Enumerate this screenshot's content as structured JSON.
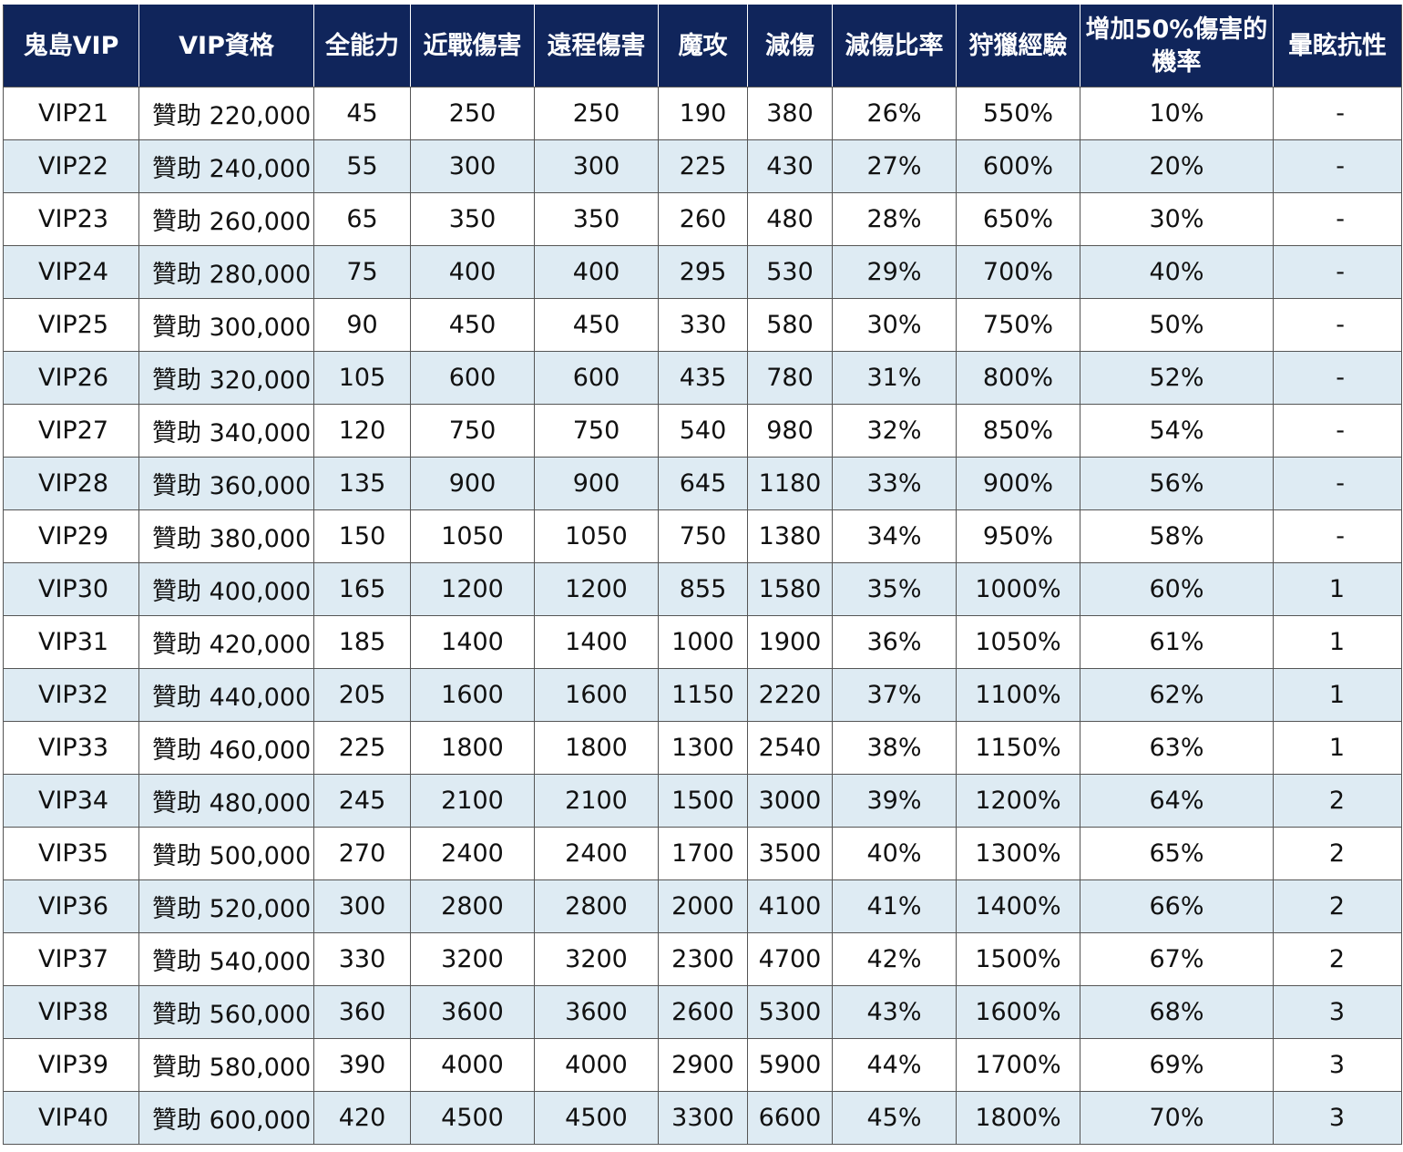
{
  "table": {
    "headers": [
      "鬼島VIP",
      "VIP資格",
      "全能力",
      "近戰傷害",
      "遠程傷害",
      "魔攻",
      "減傷",
      "減傷比率",
      "狩獵經驗",
      "增加50%傷害的機率",
      "暈眩抗性"
    ],
    "rows": [
      [
        "VIP21",
        "贊助 220,000",
        "45",
        "250",
        "250",
        "190",
        "380",
        "26%",
        "550%",
        "10%",
        "-"
      ],
      [
        "VIP22",
        "贊助 240,000",
        "55",
        "300",
        "300",
        "225",
        "430",
        "27%",
        "600%",
        "20%",
        "-"
      ],
      [
        "VIP23",
        "贊助 260,000",
        "65",
        "350",
        "350",
        "260",
        "480",
        "28%",
        "650%",
        "30%",
        "-"
      ],
      [
        "VIP24",
        "贊助 280,000",
        "75",
        "400",
        "400",
        "295",
        "530",
        "29%",
        "700%",
        "40%",
        "-"
      ],
      [
        "VIP25",
        "贊助 300,000",
        "90",
        "450",
        "450",
        "330",
        "580",
        "30%",
        "750%",
        "50%",
        "-"
      ],
      [
        "VIP26",
        "贊助 320,000",
        "105",
        "600",
        "600",
        "435",
        "780",
        "31%",
        "800%",
        "52%",
        "-"
      ],
      [
        "VIP27",
        "贊助 340,000",
        "120",
        "750",
        "750",
        "540",
        "980",
        "32%",
        "850%",
        "54%",
        "-"
      ],
      [
        "VIP28",
        "贊助 360,000",
        "135",
        "900",
        "900",
        "645",
        "1180",
        "33%",
        "900%",
        "56%",
        "-"
      ],
      [
        "VIP29",
        "贊助 380,000",
        "150",
        "1050",
        "1050",
        "750",
        "1380",
        "34%",
        "950%",
        "58%",
        "-"
      ],
      [
        "VIP30",
        "贊助 400,000",
        "165",
        "1200",
        "1200",
        "855",
        "1580",
        "35%",
        "1000%",
        "60%",
        "1"
      ],
      [
        "VIP31",
        "贊助 420,000",
        "185",
        "1400",
        "1400",
        "1000",
        "1900",
        "36%",
        "1050%",
        "61%",
        "1"
      ],
      [
        "VIP32",
        "贊助 440,000",
        "205",
        "1600",
        "1600",
        "1150",
        "2220",
        "37%",
        "1100%",
        "62%",
        "1"
      ],
      [
        "VIP33",
        "贊助 460,000",
        "225",
        "1800",
        "1800",
        "1300",
        "2540",
        "38%",
        "1150%",
        "63%",
        "1"
      ],
      [
        "VIP34",
        "贊助 480,000",
        "245",
        "2100",
        "2100",
        "1500",
        "3000",
        "39%",
        "1200%",
        "64%",
        "2"
      ],
      [
        "VIP35",
        "贊助 500,000",
        "270",
        "2400",
        "2400",
        "1700",
        "3500",
        "40%",
        "1300%",
        "65%",
        "2"
      ],
      [
        "VIP36",
        "贊助 520,000",
        "300",
        "2800",
        "2800",
        "2000",
        "4100",
        "41%",
        "1400%",
        "66%",
        "2"
      ],
      [
        "VIP37",
        "贊助 540,000",
        "330",
        "3200",
        "3200",
        "2300",
        "4700",
        "42%",
        "1500%",
        "67%",
        "2"
      ],
      [
        "VIP38",
        "贊助 560,000",
        "360",
        "3600",
        "3600",
        "2600",
        "5300",
        "43%",
        "1600%",
        "68%",
        "3"
      ],
      [
        "VIP39",
        "贊助 580,000",
        "390",
        "4000",
        "4000",
        "2900",
        "5900",
        "44%",
        "1700%",
        "69%",
        "3"
      ],
      [
        "VIP40",
        "贊助 600,000",
        "420",
        "4500",
        "4500",
        "3300",
        "6600",
        "45%",
        "1800%",
        "70%",
        "3"
      ]
    ]
  },
  "colors": {
    "header_background": "#10255b",
    "header_text": "#ffffff",
    "stripe_background": "#deebf3",
    "border": "#555555"
  }
}
